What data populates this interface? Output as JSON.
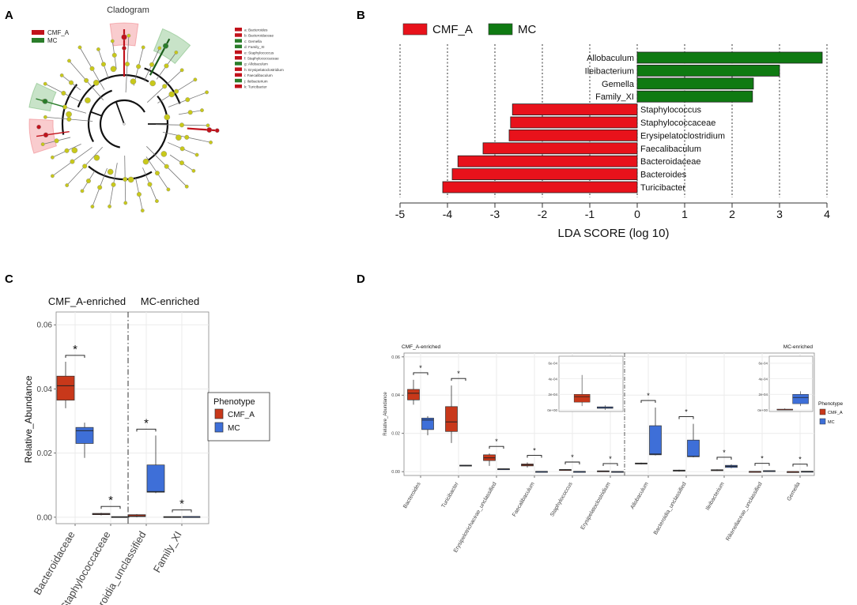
{
  "colors": {
    "cmf": "#e8121b",
    "mc": "#0f7a12",
    "box_cmf": "#c8381a",
    "box_mc": "#3e6fd8",
    "clad_node": "#c8c81a",
    "clad_red": "#c1121b",
    "clad_green": "#2a7d2a",
    "grid": "#ebebeb",
    "panel_border": "#888888"
  },
  "panels": {
    "a": {
      "letter": "A",
      "title": "Cladogram",
      "legend": [
        {
          "label": "CMF_A",
          "group": "cmf"
        },
        {
          "label": "MC",
          "group": "mc"
        }
      ],
      "taxa": [
        {
          "text": "a: Bacteroides",
          "group": "cmf"
        },
        {
          "text": "b: Bacteroidaceae",
          "group": "cmf"
        },
        {
          "text": "c: Gemella",
          "group": "mc"
        },
        {
          "text": "d: Family_XI",
          "group": "mc"
        },
        {
          "text": "e: Staphylococcus",
          "group": "cmf"
        },
        {
          "text": "f: Staphylococcaceae",
          "group": "cmf"
        },
        {
          "text": "g: Allobaculum",
          "group": "mc"
        },
        {
          "text": "h: Erysipelatoclostridium",
          "group": "cmf"
        },
        {
          "text": "i: Faecalibaculum",
          "group": "cmf"
        },
        {
          "text": "j: Ileibacterium",
          "group": "mc"
        },
        {
          "text": "k: Turicibacter",
          "group": "cmf"
        }
      ]
    },
    "b": {
      "letter": "B"
    },
    "c": {
      "letter": "C"
    },
    "d": {
      "letter": "D"
    }
  },
  "chart_data": [
    {
      "panel": "B",
      "type": "bar",
      "orientation": "horizontal",
      "legend": [
        "CMF_A",
        "MC"
      ],
      "xlabel": "LDA SCORE (log 10)",
      "xlim": [
        -5,
        4
      ],
      "xticks": [
        -5,
        -4,
        -3,
        -2,
        -1,
        0,
        1,
        2,
        3,
        4
      ],
      "bars": [
        {
          "label": "Allobaculum",
          "value": 3.9,
          "group": "MC"
        },
        {
          "label": "Ileibacterium",
          "value": 3.0,
          "group": "MC"
        },
        {
          "label": "Gemella",
          "value": 2.45,
          "group": "MC"
        },
        {
          "label": "Family_XI",
          "value": 2.43,
          "group": "MC"
        },
        {
          "label": "Staphylococcus",
          "value": -2.63,
          "group": "CMF_A"
        },
        {
          "label": "Staphylococcaceae",
          "value": -2.67,
          "group": "CMF_A"
        },
        {
          "label": "Erysipelatoclostridium",
          "value": -2.7,
          "group": "CMF_A"
        },
        {
          "label": "Faecalibaculum",
          "value": -3.25,
          "group": "CMF_A"
        },
        {
          "label": "Bacteroidaceae",
          "value": -3.78,
          "group": "CMF_A"
        },
        {
          "label": "Bacteroides",
          "value": -3.9,
          "group": "CMF_A"
        },
        {
          "label": "Turicibacter",
          "value": -4.1,
          "group": "CMF_A"
        }
      ]
    },
    {
      "panel": "C",
      "type": "box",
      "ylabel": "Relative_Abundance",
      "ylim": [
        -0.002,
        0.064
      ],
      "yticks": [
        0.0,
        0.02,
        0.04,
        0.06
      ],
      "ytick_labels": [
        "0.00",
        "0.02",
        "0.04",
        "0.06"
      ],
      "facets": [
        "CMF_A-enriched",
        "MC-enriched"
      ],
      "legend": {
        "title": "Phenotype",
        "entries": [
          "CMF_A",
          "MC"
        ]
      },
      "groups": [
        {
          "label": "Bacteroidaceae",
          "facet": 0,
          "sig": "*",
          "CMF_A": {
            "min": 0.034,
            "q1": 0.0365,
            "median": 0.041,
            "q3": 0.044,
            "max": 0.0485
          },
          "MC": {
            "min": 0.0185,
            "q1": 0.023,
            "median": 0.027,
            "q3": 0.028,
            "max": 0.0295
          }
        },
        {
          "label": "Staphylococcaceae",
          "facet": 0,
          "sig": "*",
          "CMF_A": {
            "min": 0.0006,
            "q1": 0.0008,
            "median": 0.001,
            "q3": 0.0012,
            "max": 0.0014
          },
          "MC": {
            "min": 0.0,
            "q1": 0.0,
            "median": 0.0001,
            "q3": 0.0002,
            "max": 0.0002
          }
        },
        {
          "label": "Bacteroidia_unclassified",
          "facet": 1,
          "sig": "*",
          "CMF_A": {
            "min": 0.0,
            "q1": 0.0002,
            "median": 0.0004,
            "q3": 0.0008,
            "max": 0.001
          },
          "MC": {
            "min": 0.0075,
            "q1": 0.0078,
            "median": 0.008,
            "q3": 0.0163,
            "max": 0.0255
          }
        },
        {
          "label": "Family_XI",
          "facet": 1,
          "sig": "*",
          "CMF_A": {
            "min": 0.0001,
            "q1": 0.0001,
            "median": 0.0001,
            "q3": 0.0002,
            "max": 0.0002
          },
          "MC": {
            "min": 0.0,
            "q1": 0.0001,
            "median": 0.0002,
            "q3": 0.0002,
            "max": 0.0003
          }
        }
      ]
    },
    {
      "panel": "D",
      "type": "box",
      "ylabel": "Relative_Abundance",
      "ylim": [
        -0.002,
        0.062
      ],
      "yticks": [
        0.0,
        0.02,
        0.04,
        0.06
      ],
      "ytick_labels": [
        "0.00",
        "0.02",
        "0.04",
        "0.06"
      ],
      "facets": [
        "CMF_A-enriched",
        "MC-enriched"
      ],
      "legend": {
        "title": "Phenotype",
        "entries": [
          "CMF_A",
          "MC"
        ]
      },
      "groups": [
        {
          "label": "Bacteroides",
          "facet": 0,
          "sig": "*",
          "CMF_A": {
            "min": 0.035,
            "q1": 0.0375,
            "median": 0.041,
            "q3": 0.043,
            "max": 0.048
          },
          "MC": {
            "min": 0.019,
            "q1": 0.022,
            "median": 0.027,
            "q3": 0.028,
            "max": 0.029
          }
        },
        {
          "label": "Turicibacter",
          "facet": 0,
          "sig": "*",
          "CMF_A": {
            "min": 0.015,
            "q1": 0.021,
            "median": 0.026,
            "q3": 0.034,
            "max": 0.045
          },
          "MC": {
            "min": 0.0028,
            "q1": 0.003,
            "median": 0.0032,
            "q3": 0.0034,
            "max": 0.0035
          }
        },
        {
          "label": "Erysipelotrichaceae_unclassified",
          "facet": 0,
          "sig": "*",
          "CMF_A": {
            "min": 0.003,
            "q1": 0.0058,
            "median": 0.0072,
            "q3": 0.0088,
            "max": 0.0095
          },
          "MC": {
            "min": 0.0012,
            "q1": 0.0013,
            "median": 0.0014,
            "q3": 0.0015,
            "max": 0.0016
          }
        },
        {
          "label": "Faecalibaculum",
          "facet": 0,
          "sig": "*",
          "CMF_A": {
            "min": 0.0022,
            "q1": 0.003,
            "median": 0.0035,
            "q3": 0.004,
            "max": 0.0048
          },
          "MC": {
            "min": 0.0,
            "q1": 0.0,
            "median": 0.0001,
            "q3": 0.0001,
            "max": 0.0002
          }
        },
        {
          "label": "Staphylococcus",
          "facet": 0,
          "sig": "*",
          "CMF_A": {
            "min": 0.0007,
            "q1": 0.0008,
            "median": 0.001,
            "q3": 0.0011,
            "max": 0.0013
          },
          "MC": {
            "min": 0.0,
            "q1": 0.0,
            "median": 0.0001,
            "q3": 0.0001,
            "max": 0.0002
          }
        },
        {
          "label": "Erysipelatoclostridium",
          "facet": 0,
          "sig": "*",
          "CMF_A": {
            "min": 0.0001,
            "q1": 0.0002,
            "median": 0.0003,
            "q3": 0.0004,
            "max": 0.0005
          },
          "MC": {
            "min": 0.0,
            "q1": 0.0,
            "median": 0.0,
            "q3": 0.0001,
            "max": 0.0001
          }
        },
        {
          "label": "Allobaculum",
          "facet": 1,
          "sig": "*",
          "CMF_A": {
            "min": 0.0038,
            "q1": 0.004,
            "median": 0.0042,
            "q3": 0.0045,
            "max": 0.0047
          },
          "MC": {
            "min": 0.0085,
            "q1": 0.0088,
            "median": 0.0092,
            "q3": 0.024,
            "max": 0.0335
          }
        },
        {
          "label": "Bacteroidia_unclassified",
          "facet": 1,
          "sig": "*",
          "CMF_A": {
            "min": 0.0,
            "q1": 0.0003,
            "median": 0.0005,
            "q3": 0.0008,
            "max": 0.001
          },
          "MC": {
            "min": 0.0075,
            "q1": 0.0078,
            "median": 0.008,
            "q3": 0.0165,
            "max": 0.025
          }
        },
        {
          "label": "Ileibacterium",
          "facet": 1,
          "sig": "*",
          "CMF_A": {
            "min": 0.0004,
            "q1": 0.0006,
            "median": 0.0008,
            "q3": 0.001,
            "max": 0.0012
          },
          "MC": {
            "min": 0.0018,
            "q1": 0.0022,
            "median": 0.0028,
            "q3": 0.0033,
            "max": 0.0038
          }
        },
        {
          "label": "Rikenellaceae_unclassified",
          "facet": 1,
          "sig": "*",
          "CMF_A": {
            "min": 0.0,
            "q1": 0.0,
            "median": 0.0001,
            "q3": 0.0001,
            "max": 0.0001
          },
          "MC": {
            "min": 0.0002,
            "q1": 0.0003,
            "median": 0.0004,
            "q3": 0.0005,
            "max": 0.0006
          }
        },
        {
          "label": "Gemella",
          "facet": 1,
          "sig": "*",
          "CMF_A": {
            "min": 0.0,
            "q1": 0.0,
            "median": 0.0,
            "q3": 0.0,
            "max": 0.0001
          },
          "MC": {
            "min": 0.0,
            "q1": 0.0,
            "median": 0.0001,
            "q3": 0.0002,
            "max": 0.0002
          }
        }
      ],
      "insets": [
        {
          "facet": 0,
          "yticks": [
            "0e+00",
            "2e-04",
            "4e-04",
            "6e-04"
          ],
          "ymax": 0.00065,
          "CMF_A": {
            "min": 5e-05,
            "q1": 0.0001,
            "median": 0.00017,
            "q3": 0.0002,
            "max": 0.00045
          },
          "MC": {
            "min": 0.0,
            "q1": 2e-05,
            "median": 3e-05,
            "q3": 4e-05,
            "max": 6e-05
          }
        },
        {
          "facet": 1,
          "yticks": [
            "0e+00",
            "2e-04",
            "4e-04",
            "6e-04"
          ],
          "ymax": 0.00065,
          "CMF_A": {
            "min": 0.0,
            "q1": 0.0,
            "median": 0.0,
            "q3": 1e-05,
            "max": 2e-05
          },
          "MC": {
            "min": 5e-05,
            "q1": 8e-05,
            "median": 0.00016,
            "q3": 0.0002,
            "max": 0.00024
          }
        }
      ]
    }
  ]
}
